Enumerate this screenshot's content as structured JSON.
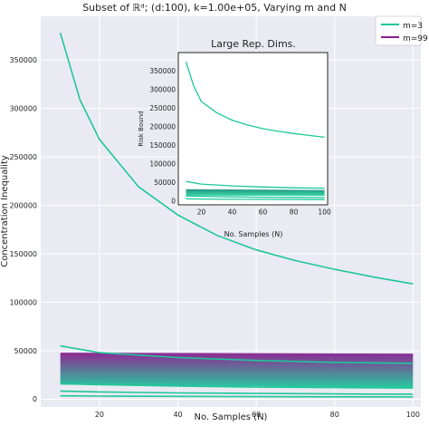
{
  "chart_data": [
    {
      "type": "line",
      "title": "Subset of ℝᵈ; (d:100), k=1.00e+05, Varying m and N",
      "xlabel": "No. Samples (N)",
      "ylabel": "Concentration Inequality",
      "xlim": [
        5,
        102
      ],
      "ylim": [
        -8000,
        395000
      ],
      "xticks": [
        20,
        40,
        60,
        80,
        100
      ],
      "yticks": [
        0,
        50000,
        100000,
        150000,
        200000,
        250000,
        300000,
        350000
      ],
      "grid": true,
      "legend": "top-right",
      "legend_entries": [
        {
          "label": "m=3",
          "color": "#1dc79a"
        },
        {
          "label": "m=99",
          "color": "#8a1e8f"
        }
      ],
      "series": [
        {
          "name": "m=3",
          "color": "#1dc79a",
          "x": [
            10,
            15,
            20,
            30,
            40,
            50,
            60,
            70,
            80,
            90,
            100
          ],
          "y": [
            378000,
            309000,
            268000,
            219000,
            190000,
            169000,
            154000,
            143000,
            134000,
            126000,
            119000
          ]
        },
        {
          "name": "",
          "color": "#1dc79a",
          "x": [
            10,
            20,
            40,
            60,
            80,
            100
          ],
          "y": [
            55000,
            48000,
            43000,
            40000,
            38000,
            37000
          ]
        },
        {
          "name": "",
          "color": "#1dc79a",
          "x": [
            10,
            20,
            40,
            60,
            80,
            100
          ],
          "y": [
            16000,
            15000,
            13500,
            12500,
            12000,
            11500
          ]
        },
        {
          "name": "",
          "color": "#1dc79a",
          "x": [
            10,
            20,
            40,
            60,
            80,
            100
          ],
          "y": [
            8500,
            7500,
            6500,
            6000,
            5500,
            5200
          ]
        },
        {
          "name": "",
          "color": "#1dc79a",
          "x": [
            10,
            20,
            40,
            60,
            80,
            100
          ],
          "y": [
            3500,
            3200,
            2900,
            2700,
            2500,
            2400
          ]
        }
      ],
      "band": {
        "x_start": 10,
        "x_end": 100,
        "top": [
          48000,
          47000
        ],
        "bottom": [
          15000,
          12000
        ],
        "color_top": "#8a1e8f",
        "color_bottom": "#1dc79a"
      }
    },
    {
      "type": "line",
      "title": "Large Rep. Dims.",
      "xlabel": "No. Samples (N)",
      "ylabel": "Risk Bound",
      "xlim": [
        5,
        102
      ],
      "ylim": [
        -10000,
        400000
      ],
      "xticks": [
        20,
        40,
        60,
        80,
        100
      ],
      "yticks": [
        0,
        50000,
        100000,
        150000,
        200000,
        250000,
        300000,
        350000
      ],
      "grid": false,
      "series": [
        {
          "name": "",
          "color": "#1dc79a",
          "x": [
            10,
            15,
            20,
            30,
            40,
            50,
            60,
            70,
            80,
            90,
            100
          ],
          "y": [
            375000,
            310000,
            268000,
            238000,
            218000,
            205000,
            195000,
            188000,
            182000,
            177000,
            172000
          ]
        },
        {
          "name": "",
          "color": "#1dc79a",
          "x": [
            10,
            20,
            40,
            60,
            80,
            100
          ],
          "y": [
            53000,
            46000,
            41000,
            38000,
            36000,
            35000
          ]
        },
        {
          "name": "",
          "color": "#1dc79a",
          "x": [
            10,
            20,
            40,
            60,
            80,
            100
          ],
          "y": [
            14000,
            13000,
            11500,
            10500,
            10000,
            9500
          ]
        },
        {
          "name": "",
          "color": "#1dc79a",
          "x": [
            10,
            20,
            40,
            60,
            80,
            100
          ],
          "y": [
            6000,
            5500,
            5000,
            4700,
            4400,
            4200
          ]
        }
      ],
      "band": {
        "x_start": 10,
        "x_end": 100,
        "top": [
          32000,
          30000
        ],
        "bottom": [
          15000,
          14000
        ],
        "color_top": "#1a8f7e",
        "color_bottom": "#2fd6a2"
      }
    }
  ]
}
